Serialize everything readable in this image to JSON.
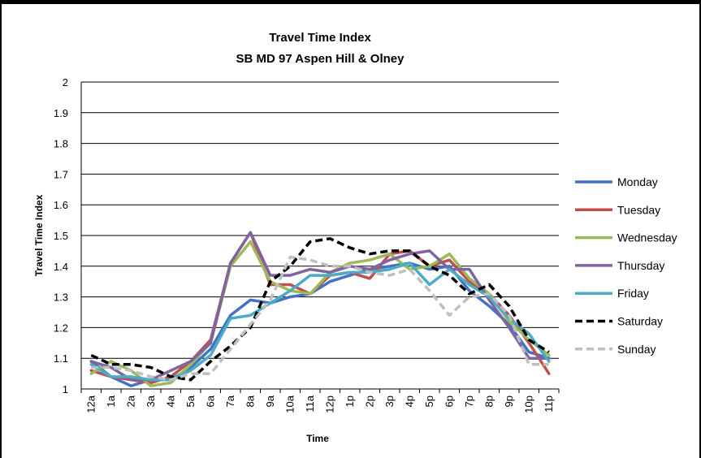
{
  "chart_data": {
    "type": "line",
    "title": "Travel Time Index",
    "subtitle": "SB MD 97 Aspen Hill & Olney",
    "xlabel": "Time",
    "ylabel": "Travel Time Index",
    "ylim": [
      1,
      2
    ],
    "yticks": [
      "1",
      "1.1",
      "1.2",
      "1.3",
      "1.4",
      "1.5",
      "1.6",
      "1.7",
      "1.8",
      "1.9",
      "2"
    ],
    "grid": true,
    "legend_position": "right",
    "categories": [
      "12a",
      "1a",
      "2a",
      "3a",
      "4a",
      "5a",
      "6a",
      "7a",
      "8a",
      "9a",
      "10a",
      "11a",
      "12p",
      "1p",
      "2p",
      "3p",
      "4p",
      "5p",
      "6p",
      "7p",
      "8p",
      "9p",
      "10p",
      "11p"
    ],
    "series": [
      {
        "name": "Monday",
        "color": "#4472C4",
        "dash": "solid",
        "values": [
          1.09,
          1.04,
          1.01,
          1.03,
          1.03,
          1.07,
          1.13,
          1.24,
          1.29,
          1.28,
          1.3,
          1.31,
          1.35,
          1.37,
          1.39,
          1.4,
          1.41,
          1.39,
          1.4,
          1.32,
          1.27,
          1.21,
          1.12,
          1.1
        ]
      },
      {
        "name": "Tuesday",
        "color": "#C0504D",
        "dash": "solid",
        "values": [
          1.06,
          1.04,
          1.03,
          1.02,
          1.04,
          1.09,
          1.16,
          1.41,
          1.51,
          1.34,
          1.34,
          1.31,
          1.37,
          1.38,
          1.36,
          1.44,
          1.45,
          1.4,
          1.42,
          1.35,
          1.31,
          1.24,
          1.15,
          1.05
        ]
      },
      {
        "name": "Wednesday",
        "color": "#9BBB59",
        "dash": "solid",
        "values": [
          1.05,
          1.09,
          1.06,
          1.01,
          1.02,
          1.08,
          1.15,
          1.4,
          1.48,
          1.35,
          1.32,
          1.31,
          1.38,
          1.41,
          1.42,
          1.44,
          1.39,
          1.4,
          1.44,
          1.36,
          1.31,
          1.22,
          1.16,
          1.11
        ]
      },
      {
        "name": "Thursday",
        "color": "#8064A2",
        "dash": "solid",
        "values": [
          1.09,
          1.07,
          1.03,
          1.03,
          1.06,
          1.09,
          1.15,
          1.41,
          1.51,
          1.37,
          1.37,
          1.39,
          1.38,
          1.4,
          1.39,
          1.42,
          1.44,
          1.45,
          1.39,
          1.39,
          1.29,
          1.2,
          1.1,
          1.1
        ]
      },
      {
        "name": "Friday",
        "color": "#4BACC6",
        "dash": "solid",
        "values": [
          1.08,
          1.04,
          1.04,
          1.03,
          1.03,
          1.06,
          1.11,
          1.23,
          1.24,
          1.28,
          1.32,
          1.37,
          1.37,
          1.38,
          1.38,
          1.39,
          1.41,
          1.34,
          1.39,
          1.34,
          1.3,
          1.23,
          1.18,
          1.09
        ]
      },
      {
        "name": "Saturday",
        "color": "#000000",
        "dash": "9,5",
        "values": [
          1.11,
          1.08,
          1.08,
          1.07,
          1.04,
          1.03,
          1.09,
          1.14,
          1.2,
          1.35,
          1.4,
          1.48,
          1.49,
          1.46,
          1.44,
          1.45,
          1.45,
          1.4,
          1.37,
          1.31,
          1.34,
          1.27,
          1.16,
          1.12
        ]
      },
      {
        "name": "Sunday",
        "color": "#BFBFBF",
        "dash": "9,5",
        "values": [
          1.07,
          1.07,
          1.06,
          1.04,
          1.03,
          1.05,
          1.05,
          1.13,
          1.21,
          1.29,
          1.43,
          1.42,
          1.4,
          1.4,
          1.38,
          1.37,
          1.39,
          1.32,
          1.24,
          1.3,
          1.31,
          1.24,
          1.08,
          1.08
        ]
      }
    ]
  }
}
